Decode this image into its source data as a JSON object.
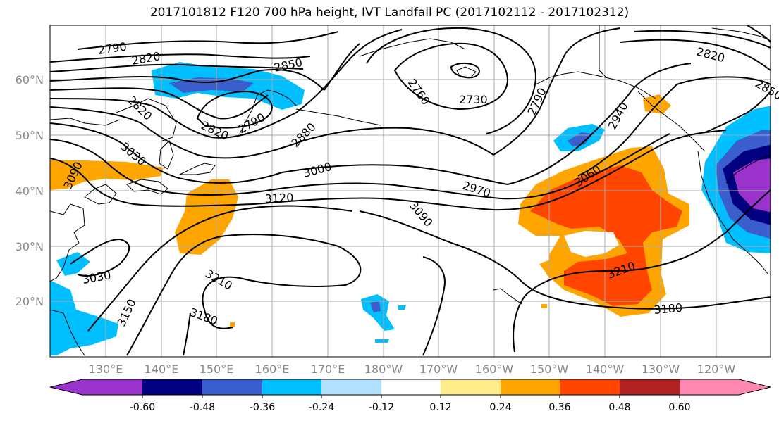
{
  "title": "2017101812 F120 700 hPa height, IVT Landfall PC (2017102112 - 2017102312)",
  "lat_labels": [
    "60°N",
    "50°N",
    "40°N",
    "30°N",
    "20°N"
  ],
  "lon_labels": [
    "130°E",
    "140°E",
    "150°E",
    "160°E",
    "170°E",
    "180°W",
    "170°W",
    "160°W",
    "150°W",
    "140°W",
    "130°W",
    "120°W"
  ],
  "colorbar": {
    "colors": [
      "#9933cc",
      "#000080",
      "#3a5fcd",
      "#00bfff",
      "#b2e2ff",
      "#ffffff",
      "#ffec8b",
      "#ffa500",
      "#ff4500",
      "#b22222",
      "#ff88b0"
    ],
    "tick_labels": [
      "-0.60",
      "-0.48",
      "-0.36",
      "-0.24",
      "-0.12",
      "0.12",
      "0.24",
      "0.36",
      "0.48",
      "0.60"
    ]
  },
  "contour_labels": [
    "2790",
    "2820",
    "2850",
    "2760",
    "2730",
    "2790",
    "2820",
    "2850",
    "2940",
    "2820",
    "2820",
    "2790",
    "2880",
    "3030",
    "3090",
    "3000",
    "3120",
    "2970",
    "3060",
    "3090",
    "3210",
    "3210",
    "3180",
    "3180",
    "3150",
    "3030"
  ]
}
